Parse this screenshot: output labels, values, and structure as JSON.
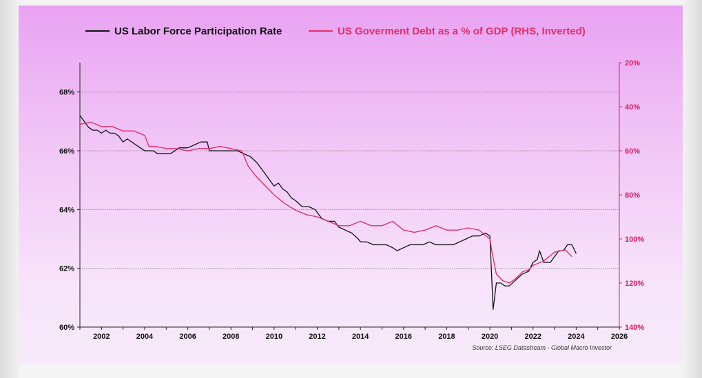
{
  "chart_data": {
    "type": "line",
    "x_range": [
      2001.0,
      2026.0
    ],
    "x_ticks": [
      "2002",
      "2004",
      "2006",
      "2008",
      "2010",
      "2012",
      "2014",
      "2016",
      "2018",
      "2020",
      "2022",
      "2024",
      "2026"
    ],
    "left_axis": {
      "range": [
        60,
        69
      ],
      "ticks": [
        "60%",
        "62%",
        "64%",
        "66%",
        "68%"
      ],
      "tick_values": [
        60,
        62,
        64,
        66,
        68
      ]
    },
    "right_axis": {
      "range": [
        140,
        20
      ],
      "inverted": true,
      "ticks": [
        "20%",
        "40%",
        "60%",
        "80%",
        "100%",
        "120%",
        "140%"
      ],
      "tick_values": [
        20,
        40,
        60,
        80,
        100,
        120,
        140
      ]
    },
    "gridlines": "horizontal dotted at left-axis ticks",
    "legend_position": "top",
    "source": "Source: LSEG Datastream - Global Macro Investor",
    "series": [
      {
        "name": "US Labor Force Participation Rate",
        "axis": "left",
        "color": "#111111",
        "x": [
          2001.0,
          2001.2,
          2001.4,
          2001.6,
          2001.8,
          2002.0,
          2002.2,
          2002.4,
          2002.6,
          2002.8,
          2003.0,
          2003.2,
          2003.4,
          2003.6,
          2003.8,
          2004.0,
          2004.2,
          2004.4,
          2004.6,
          2004.8,
          2005.0,
          2005.2,
          2005.4,
          2005.6,
          2005.8,
          2006.0,
          2006.3,
          2006.6,
          2006.9,
          2007.0,
          2007.3,
          2007.6,
          2007.9,
          2008.0,
          2008.3,
          2008.6,
          2008.9,
          2009.2,
          2009.4,
          2009.6,
          2009.8,
          2010.0,
          2010.2,
          2010.4,
          2010.6,
          2010.8,
          2011.0,
          2011.3,
          2011.6,
          2011.9,
          2012.2,
          2012.5,
          2012.8,
          2013.0,
          2013.3,
          2013.6,
          2013.9,
          2014.0,
          2014.3,
          2014.6,
          2014.9,
          2015.2,
          2015.5,
          2015.7,
          2016.0,
          2016.3,
          2016.6,
          2016.9,
          2017.2,
          2017.5,
          2017.8,
          2018.0,
          2018.3,
          2018.6,
          2018.9,
          2019.2,
          2019.5,
          2019.8,
          2020.0,
          2020.15,
          2020.3,
          2020.5,
          2020.7,
          2020.9,
          2021.2,
          2021.5,
          2021.8,
          2022.0,
          2022.2,
          2022.3,
          2022.5,
          2022.8,
          2023.0,
          2023.2,
          2023.4,
          2023.6,
          2023.8,
          2024.0
        ],
        "values": [
          67.2,
          67.0,
          66.8,
          66.7,
          66.7,
          66.6,
          66.7,
          66.6,
          66.6,
          66.5,
          66.3,
          66.4,
          66.3,
          66.2,
          66.1,
          66.0,
          66.0,
          66.0,
          65.9,
          65.9,
          65.9,
          65.9,
          66.0,
          66.1,
          66.1,
          66.1,
          66.2,
          66.3,
          66.3,
          66.0,
          66.0,
          66.0,
          66.0,
          66.0,
          66.0,
          65.9,
          65.8,
          65.6,
          65.4,
          65.2,
          65.0,
          64.8,
          64.9,
          64.7,
          64.6,
          64.4,
          64.3,
          64.1,
          64.1,
          64.0,
          63.7,
          63.6,
          63.6,
          63.4,
          63.3,
          63.2,
          63.0,
          62.9,
          62.9,
          62.8,
          62.8,
          62.8,
          62.7,
          62.6,
          62.7,
          62.8,
          62.8,
          62.8,
          62.9,
          62.8,
          62.8,
          62.8,
          62.8,
          62.9,
          63.0,
          63.1,
          63.1,
          63.2,
          63.1,
          60.6,
          61.5,
          61.5,
          61.4,
          61.4,
          61.6,
          61.8,
          61.9,
          62.2,
          62.3,
          62.6,
          62.2,
          62.2,
          62.4,
          62.6,
          62.6,
          62.8,
          62.8,
          62.5
        ]
      },
      {
        "name": "US Goverment Debt as a % of GDP (RHS, Inverted)",
        "axis": "right",
        "color": "#e0306a",
        "x": [
          2001.0,
          2001.5,
          2002.0,
          2002.5,
          2003.0,
          2003.5,
          2004.0,
          2004.2,
          2004.5,
          2005.0,
          2005.5,
          2006.0,
          2006.5,
          2007.0,
          2007.5,
          2008.0,
          2008.5,
          2008.8,
          2009.2,
          2009.6,
          2010.0,
          2010.5,
          2011.0,
          2011.5,
          2012.0,
          2012.5,
          2013.0,
          2013.5,
          2014.0,
          2014.5,
          2015.0,
          2015.5,
          2016.0,
          2016.5,
          2017.0,
          2017.5,
          2018.0,
          2018.5,
          2019.0,
          2019.5,
          2020.0,
          2020.1,
          2020.3,
          2020.6,
          2020.9,
          2021.2,
          2021.5,
          2021.8,
          2022.0,
          2022.5,
          2023.0,
          2023.5,
          2023.8
        ],
        "values": [
          48,
          47,
          49,
          49,
          51,
          51,
          53,
          58,
          58,
          59,
          59,
          60,
          59,
          59,
          58,
          59,
          60,
          67,
          72,
          76,
          80,
          84,
          87,
          89,
          90,
          92,
          94,
          94,
          92,
          94,
          94,
          92,
          96,
          97,
          96,
          94,
          96,
          96,
          95,
          96,
          100,
          106,
          116,
          119,
          120,
          118,
          115,
          114,
          112,
          110,
          106,
          105,
          108
        ]
      }
    ]
  }
}
